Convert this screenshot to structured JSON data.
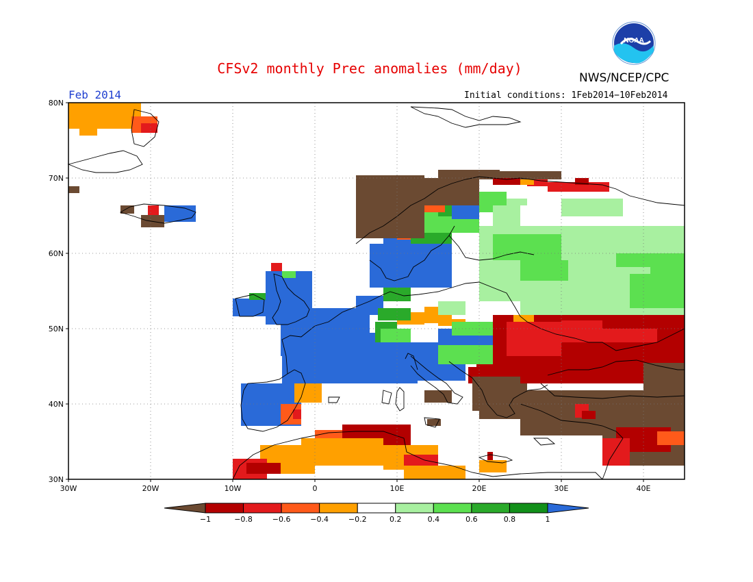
{
  "header": {
    "title": "CFSv2 monthly Prec anomalies (mm/day)",
    "agency": "NWS/NCEP/CPC",
    "logo_text": "NOAA",
    "period": "Feb 2014",
    "initial_conditions": "Initial conditions: 1Feb2014−10Feb2014"
  },
  "map": {
    "lon_range": [
      -30,
      45
    ],
    "lat_range": [
      30,
      80
    ],
    "lon_ticks": [
      "30W",
      "20W",
      "10W",
      "0",
      "10E",
      "20E",
      "30E",
      "40E"
    ],
    "lat_ticks": [
      "30N",
      "40N",
      "50N",
      "60N",
      "70N",
      "80N"
    ]
  },
  "colorbar": {
    "ticks": [
      "−1",
      "−0.8",
      "−0.6",
      "−0.4",
      "−0.2",
      "0.2",
      "0.4",
      "0.6",
      "0.8",
      "1"
    ],
    "colors": [
      "#6b4a32",
      "#b30000",
      "#e31a1c",
      "#ff5a1a",
      "#ffa000",
      "#ffffff",
      "#a8f0a0",
      "#5ce050",
      "#2aaa2a",
      "#12901a",
      "#2a6ad8"
    ]
  }
}
